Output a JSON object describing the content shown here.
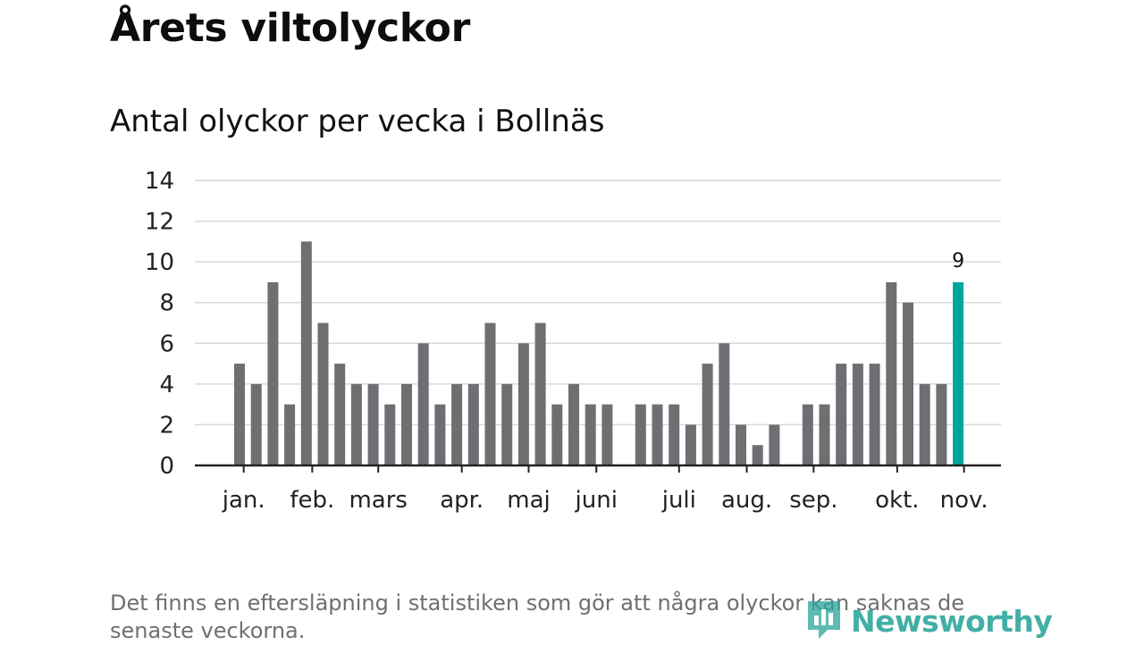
{
  "header": {
    "title": "Årets viltolyckor",
    "subtitle": "Antal olyckor per vecka i Bollnäs"
  },
  "footnote": "Det finns en eftersläpning i statistiken som gör att några olyckor kan saknas de senaste veckorna.",
  "brand": {
    "name": "Newsworthy",
    "icon": "newsworthy-logo-icon",
    "color": "#2ea79c"
  },
  "chart_data": {
    "type": "bar",
    "ylim": [
      0,
      14
    ],
    "yticks": [
      0,
      2,
      4,
      6,
      8,
      10,
      12,
      14
    ],
    "grid": true,
    "values": [
      5,
      4,
      9,
      3,
      11,
      7,
      5,
      4,
      4,
      3,
      4,
      6,
      3,
      4,
      4,
      7,
      4,
      6,
      7,
      3,
      4,
      3,
      3,
      0,
      3,
      3,
      3,
      2,
      5,
      6,
      2,
      1,
      2,
      0,
      3,
      3,
      5,
      5,
      5,
      9,
      8,
      4,
      4,
      9
    ],
    "month_ticks": [
      {
        "label": "jan.",
        "week": 0.25
      },
      {
        "label": "feb.",
        "week": 4.35
      },
      {
        "label": "mars",
        "week": 8.3
      },
      {
        "label": "apr.",
        "week": 13.3
      },
      {
        "label": "maj",
        "week": 17.3
      },
      {
        "label": "juni",
        "week": 21.35
      },
      {
        "label": "juli",
        "week": 26.3
      },
      {
        "label": "aug.",
        "week": 30.35
      },
      {
        "label": "sep.",
        "week": 34.35
      },
      {
        "label": "okt.",
        "week": 39.35
      },
      {
        "label": "nov.",
        "week": 43.35
      }
    ],
    "highlight_index": 43,
    "highlight_label": "9",
    "colors": {
      "bar": "#6f6e73",
      "highlight": "#00a69c",
      "grid": "#d9d9d9",
      "axis": "#222222"
    }
  }
}
